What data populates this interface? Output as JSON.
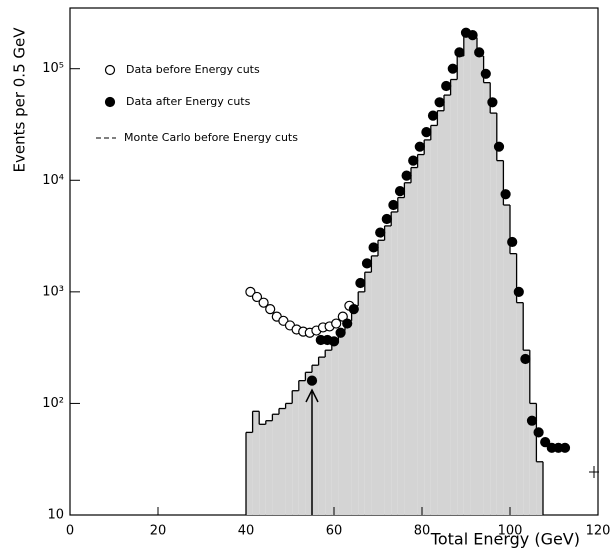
{
  "chart_data": {
    "type": "scatter",
    "xlabel": "Total Energy (GeV)",
    "ylabel": "Events per 0.5 GeV",
    "xlim": [
      0,
      120
    ],
    "xticks": [
      0,
      20,
      40,
      60,
      80,
      100,
      120
    ],
    "ylim": [
      10,
      350000
    ],
    "log_y": true,
    "yticks": [
      10,
      {
        "value": 100,
        "label": "10²"
      },
      {
        "value": 1000,
        "label": "10³"
      },
      {
        "value": 10000,
        "label": "10⁴"
      },
      {
        "value": 100000,
        "label": "10⁵"
      }
    ],
    "legend": "upper left",
    "series": [
      {
        "name": "Data before Energy cuts",
        "marker": "open",
        "color": "#000000",
        "x": [
          41,
          42.5,
          44,
          45.5,
          47,
          48.5,
          50,
          51.5,
          53,
          54.5,
          56,
          57.5,
          59,
          60.5,
          62,
          63.5
        ],
        "values": [
          1000,
          900,
          800,
          700,
          600,
          550,
          500,
          460,
          440,
          430,
          450,
          480,
          490,
          520,
          600,
          750
        ]
      },
      {
        "name": "Data after Energy cuts",
        "marker": "filled",
        "color": "#000000",
        "x": [
          55,
          57,
          58.5,
          60,
          61.5,
          63,
          64.5,
          66,
          67.5,
          69,
          70.5,
          72,
          73.5,
          75,
          76.5,
          78,
          79.5,
          81,
          82.5,
          84,
          85.5,
          87,
          88.5,
          90,
          91.5,
          93,
          94.5,
          96,
          97.5,
          99,
          100.5,
          102,
          103.5,
          105,
          106.5,
          108,
          109.5,
          111,
          112.5
        ],
        "values": [
          160,
          370,
          370,
          360,
          430,
          520,
          700,
          1200,
          1800,
          2500,
          3400,
          4500,
          6000,
          8000,
          11000,
          15000,
          20000,
          27000,
          38000,
          50000,
          70000,
          100000,
          140000,
          210000,
          200000,
          140000,
          90000,
          50000,
          20000,
          7500,
          2800,
          1000,
          250,
          70,
          55,
          45,
          40,
          40,
          40
        ]
      }
    ],
    "histogram": {
      "name": "Monte Carlo before Energy cuts",
      "color": "#d4d4d4",
      "bins": [
        40,
        41.5,
        43,
        44.5,
        46,
        47.5,
        49,
        50.5,
        52,
        53.5,
        55,
        56.5,
        58,
        59.5,
        61,
        62.5,
        64,
        65.5,
        67,
        68.5,
        70,
        71.5,
        73,
        74.5,
        76,
        77.5,
        79,
        80.5,
        82,
        83.5,
        85,
        86.5,
        88,
        89.5,
        91,
        92.5,
        94,
        95.5,
        97,
        98.5,
        100,
        101.5,
        103,
        104.5,
        106,
        107.5
      ],
      "counts": [
        55,
        85,
        65,
        70,
        80,
        90,
        100,
        130,
        160,
        190,
        220,
        260,
        300,
        350,
        450,
        550,
        750,
        1000,
        1500,
        2100,
        2900,
        3900,
        5200,
        7000,
        9500,
        13000,
        17000,
        23000,
        31000,
        42000,
        58000,
        80000,
        130000,
        200000,
        190000,
        130000,
        75000,
        40000,
        15000,
        6000,
        2200,
        800,
        300,
        100,
        30
      ]
    }
  }
}
